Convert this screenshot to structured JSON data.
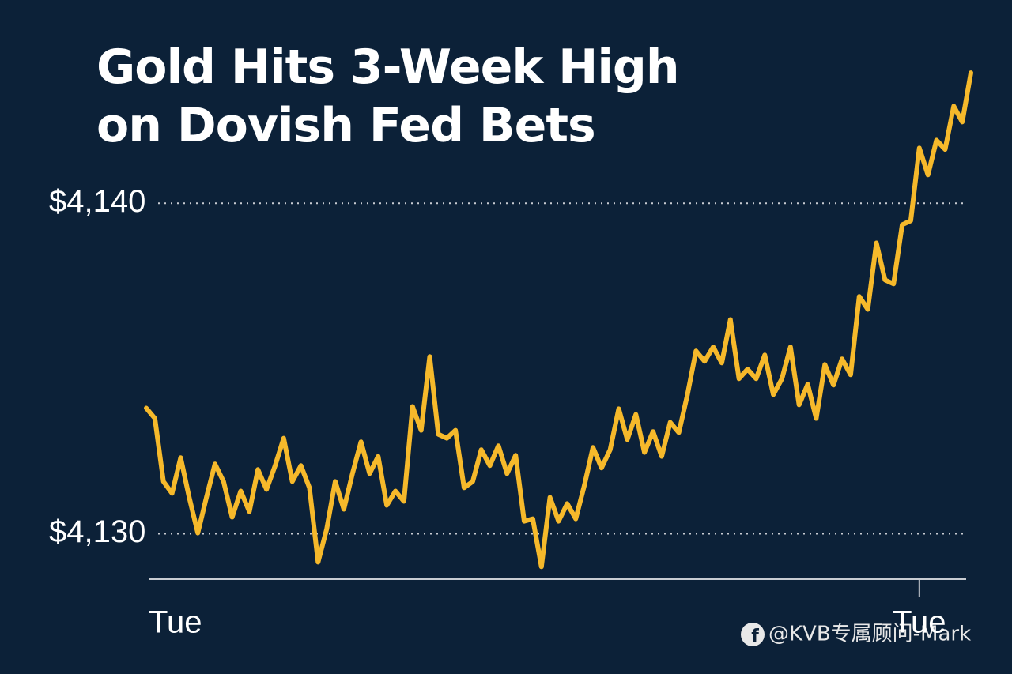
{
  "chart_data": {
    "type": "line",
    "title": "Gold Hits 3-Week High on Dovish Fed Bets",
    "watermark": "@KVB专属顾问-Mark",
    "categories": [
      "Tue",
      null,
      null,
      null,
      null,
      null,
      null,
      null,
      null,
      null,
      null,
      null,
      null,
      null,
      null,
      null,
      null,
      null,
      null,
      null,
      null,
      null,
      null,
      null,
      null,
      null,
      null,
      null,
      null,
      null,
      null,
      null,
      null,
      null,
      null,
      null,
      null,
      null,
      null,
      null,
      null,
      null,
      null,
      null,
      null,
      null,
      null,
      null,
      null,
      null,
      null,
      null,
      null,
      null,
      null,
      null,
      null,
      null,
      null,
      null,
      null,
      null,
      null,
      null,
      null,
      null,
      null,
      null,
      null,
      null,
      null,
      null,
      null,
      null,
      null,
      null,
      null,
      null,
      null,
      null,
      null,
      null,
      null,
      null,
      null,
      null,
      null,
      null,
      null,
      null,
      "Tue",
      null,
      null,
      null,
      null,
      null,
      null
    ],
    "series": [
      {
        "color": "#f6b92b",
        "values": [
          4133.8,
          4133.49,
          4131.58,
          4131.22,
          4132.3,
          4131.1,
          4130.02,
          4131.1,
          4132.11,
          4131.58,
          4130.5,
          4131.29,
          4130.67,
          4131.94,
          4131.34,
          4132.06,
          4132.89,
          4131.58,
          4132.06,
          4131.39,
          4129.14,
          4130.14,
          4131.58,
          4130.74,
          4131.82,
          4132.78,
          4131.82,
          4132.34,
          4130.86,
          4131.29,
          4130.98,
          4133.85,
          4133.13,
          4135.36,
          4133.01,
          4132.89,
          4133.13,
          4131.39,
          4131.58,
          4132.54,
          4132.06,
          4132.66,
          4131.82,
          4132.37,
          4130.38,
          4130.45,
          4129.0,
          4131.1,
          4130.38,
          4130.91,
          4130.45,
          4131.46,
          4132.61,
          4131.99,
          4132.54,
          4133.78,
          4132.85,
          4133.61,
          4132.46,
          4133.09,
          4132.34,
          4133.37,
          4133.06,
          4134.21,
          4135.53,
          4135.22,
          4135.65,
          4135.17,
          4136.48,
          4134.69,
          4134.98,
          4134.69,
          4135.41,
          4134.21,
          4134.69,
          4135.65,
          4133.9,
          4134.52,
          4133.49,
          4135.12,
          4134.5,
          4135.29,
          4134.81,
          4137.18,
          4136.79,
          4138.8,
          4137.68,
          4137.56,
          4139.35,
          4139.47,
          4141.67,
          4140.86,
          4141.91,
          4141.63,
          4142.94,
          4142.46,
          4143.95
        ]
      }
    ],
    "ylim": [
      4128.6,
      4144
    ],
    "yticks": [
      {
        "value": 4140,
        "label": "$4,140"
      },
      {
        "value": 4130,
        "label": "$4,130"
      }
    ],
    "grid": true
  }
}
